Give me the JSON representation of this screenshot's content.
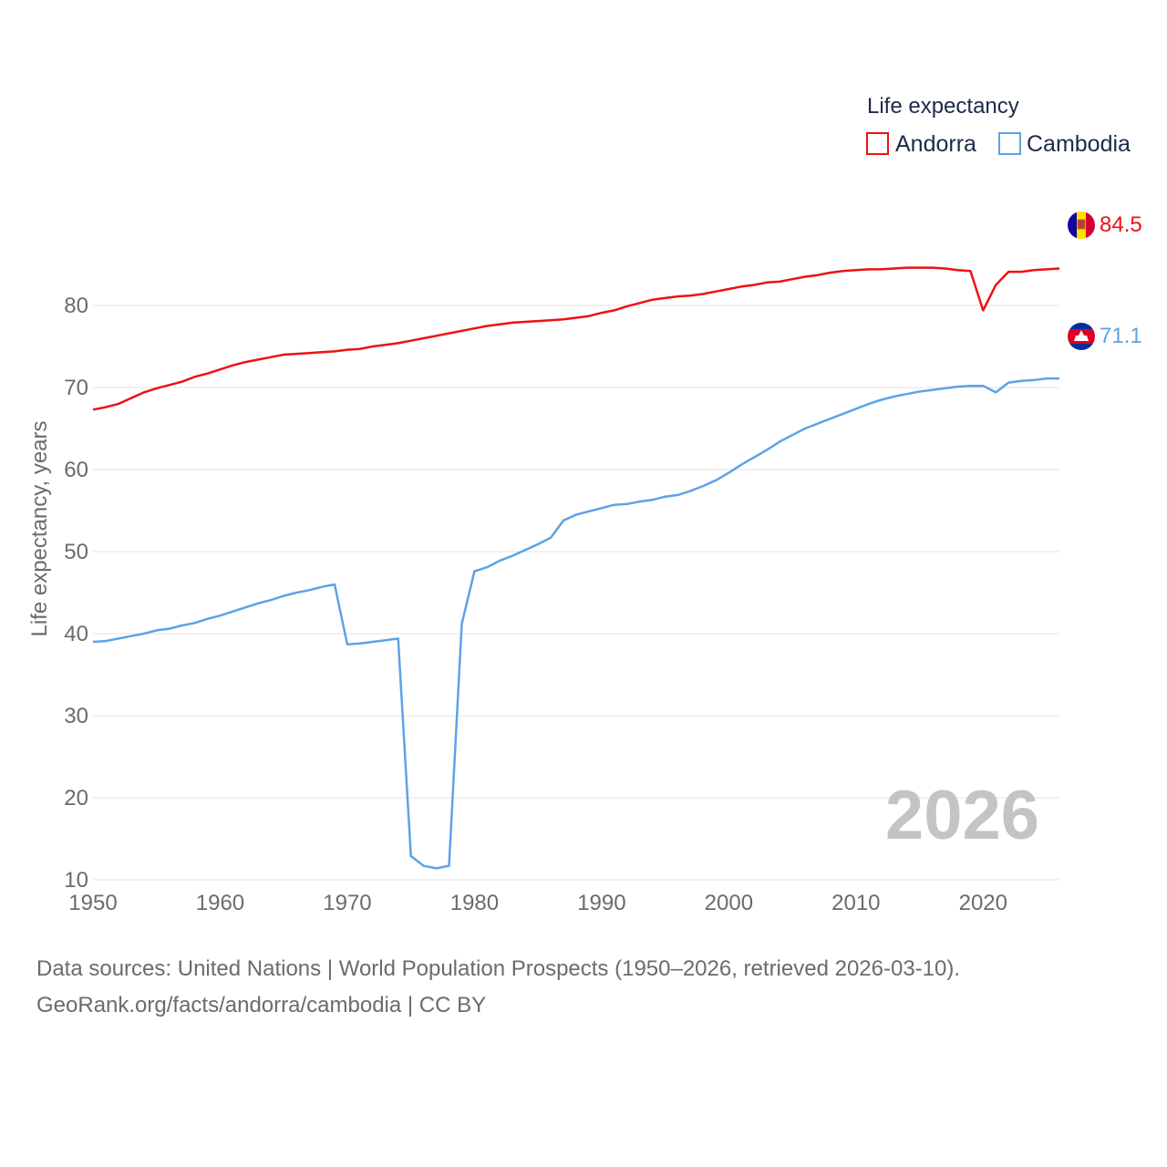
{
  "chart_data": {
    "type": "line",
    "legend_title": "Life expectancy",
    "legend_position": "top-right",
    "ylabel": "Life expectancy, years",
    "xlim": [
      1950,
      2026
    ],
    "ylim": [
      5,
      95
    ],
    "x_ticks": [
      1950,
      1960,
      1970,
      1980,
      1990,
      2000,
      2010,
      2020
    ],
    "y_ticks": [
      10,
      20,
      30,
      40,
      50,
      60,
      70,
      80
    ],
    "grid": true,
    "current_year_label": "2026",
    "series": [
      {
        "name": "Andorra",
        "color": "#ee1111",
        "end_label": "84.5",
        "flag_icon": "andorra-flag-icon",
        "x": [
          1950,
          1951,
          1952,
          1953,
          1954,
          1955,
          1956,
          1957,
          1958,
          1959,
          1960,
          1961,
          1962,
          1963,
          1964,
          1965,
          1966,
          1967,
          1968,
          1969,
          1970,
          1971,
          1972,
          1973,
          1974,
          1975,
          1976,
          1977,
          1978,
          1979,
          1980,
          1981,
          1982,
          1983,
          1984,
          1985,
          1986,
          1987,
          1988,
          1989,
          1990,
          1991,
          1992,
          1993,
          1994,
          1995,
          1996,
          1997,
          1998,
          1999,
          2000,
          2001,
          2002,
          2003,
          2004,
          2005,
          2006,
          2007,
          2008,
          2009,
          2010,
          2011,
          2012,
          2013,
          2014,
          2015,
          2016,
          2017,
          2018,
          2019,
          2020,
          2021,
          2022,
          2023,
          2024,
          2025,
          2026
        ],
        "values": [
          67.3,
          67.6,
          68.0,
          68.7,
          69.4,
          69.9,
          70.3,
          70.7,
          71.3,
          71.7,
          72.2,
          72.7,
          73.1,
          73.4,
          73.7,
          74.0,
          74.1,
          74.2,
          74.3,
          74.4,
          74.6,
          74.7,
          75.0,
          75.2,
          75.4,
          75.7,
          76.0,
          76.3,
          76.6,
          76.9,
          77.2,
          77.5,
          77.7,
          77.9,
          78.0,
          78.1,
          78.2,
          78.3,
          78.5,
          78.7,
          79.1,
          79.4,
          79.9,
          80.3,
          80.7,
          80.9,
          81.1,
          81.2,
          81.4,
          81.7,
          82.0,
          82.3,
          82.5,
          82.8,
          82.9,
          83.2,
          83.5,
          83.7,
          84.0,
          84.2,
          84.3,
          84.4,
          84.4,
          84.5,
          84.6,
          84.6,
          84.6,
          84.5,
          84.3,
          84.2,
          79.4,
          82.5,
          84.1,
          84.1,
          84.3,
          84.4,
          84.5
        ]
      },
      {
        "name": "Cambodia",
        "color": "#5ca3e6",
        "end_label": "71.1",
        "flag_icon": "cambodia-flag-icon",
        "x": [
          1950,
          1951,
          1952,
          1953,
          1954,
          1955,
          1956,
          1957,
          1958,
          1959,
          1960,
          1961,
          1962,
          1963,
          1964,
          1965,
          1966,
          1967,
          1968,
          1969,
          1970,
          1971,
          1972,
          1973,
          1974,
          1975,
          1976,
          1977,
          1978,
          1979,
          1980,
          1981,
          1982,
          1983,
          1984,
          1985,
          1986,
          1987,
          1988,
          1989,
          1990,
          1991,
          1992,
          1993,
          1994,
          1995,
          1996,
          1997,
          1998,
          1999,
          2000,
          2001,
          2002,
          2003,
          2004,
          2005,
          2006,
          2007,
          2008,
          2009,
          2010,
          2011,
          2012,
          2013,
          2014,
          2015,
          2016,
          2017,
          2018,
          2019,
          2020,
          2021,
          2022,
          2023,
          2024,
          2025,
          2026
        ],
        "values": [
          39.0,
          39.1,
          39.4,
          39.7,
          40.0,
          40.4,
          40.6,
          41.0,
          41.3,
          41.8,
          42.2,
          42.7,
          43.2,
          43.7,
          44.1,
          44.6,
          45.0,
          45.3,
          45.7,
          46.0,
          38.7,
          38.8,
          39.0,
          39.2,
          39.4,
          12.9,
          11.7,
          11.4,
          11.7,
          41.2,
          47.6,
          48.1,
          48.9,
          49.5,
          50.2,
          50.9,
          51.7,
          53.8,
          54.5,
          54.9,
          55.3,
          55.7,
          55.8,
          56.1,
          56.3,
          56.7,
          56.9,
          57.4,
          58.0,
          58.7,
          59.6,
          60.6,
          61.5,
          62.4,
          63.4,
          64.2,
          65.0,
          65.6,
          66.2,
          66.8,
          67.4,
          68.0,
          68.5,
          68.9,
          69.2,
          69.5,
          69.7,
          69.9,
          70.1,
          70.2,
          70.2,
          69.4,
          70.6,
          70.8,
          70.9,
          71.1,
          71.1
        ]
      }
    ]
  },
  "footer": {
    "source_line": "Data sources: United Nations | World Population Prospects (1950–2026, retrieved 2026-03-10).",
    "credit_line": "GeoRank.org/facts/andorra/cambodia | CC BY"
  }
}
